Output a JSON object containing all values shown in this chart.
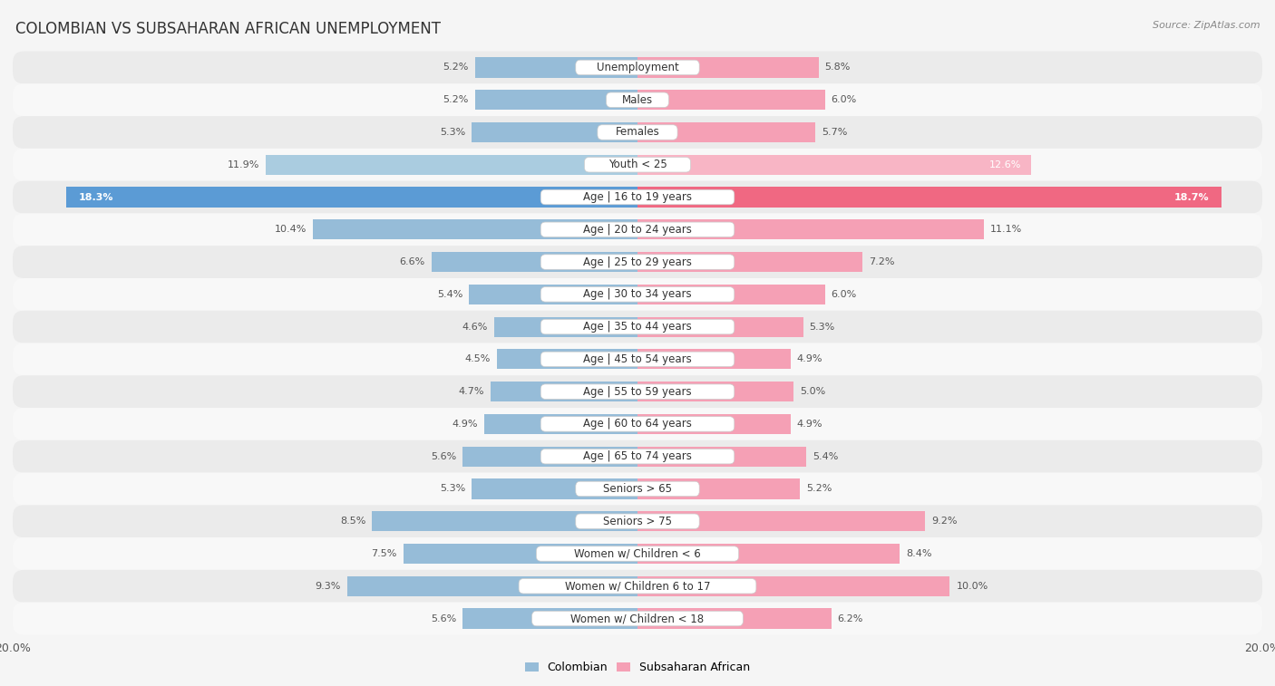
{
  "title": "COLOMBIAN VS SUBSAHARAN AFRICAN UNEMPLOYMENT",
  "source": "Source: ZipAtlas.com",
  "categories": [
    "Unemployment",
    "Males",
    "Females",
    "Youth < 25",
    "Age | 16 to 19 years",
    "Age | 20 to 24 years",
    "Age | 25 to 29 years",
    "Age | 30 to 34 years",
    "Age | 35 to 44 years",
    "Age | 45 to 54 years",
    "Age | 55 to 59 years",
    "Age | 60 to 64 years",
    "Age | 65 to 74 years",
    "Seniors > 65",
    "Seniors > 75",
    "Women w/ Children < 6",
    "Women w/ Children 6 to 17",
    "Women w/ Children < 18"
  ],
  "colombian": [
    5.2,
    5.2,
    5.3,
    11.9,
    18.3,
    10.4,
    6.6,
    5.4,
    4.6,
    4.5,
    4.7,
    4.9,
    5.6,
    5.3,
    8.5,
    7.5,
    9.3,
    5.6
  ],
  "subsaharan": [
    5.8,
    6.0,
    5.7,
    12.6,
    18.7,
    11.1,
    7.2,
    6.0,
    5.3,
    4.9,
    5.0,
    4.9,
    5.4,
    5.2,
    9.2,
    8.4,
    10.0,
    6.2
  ],
  "colombian_color": "#96bcd8",
  "subsaharan_color": "#f5a0b5",
  "colombian_highlight_color": "#5b9bd5",
  "subsaharan_highlight_color": "#f06882",
  "colombian_youth_color": "#aacce0",
  "subsaharan_youth_color": "#f8b5c5",
  "max_val": 20.0,
  "fig_bg": "#f5f5f5",
  "row_bg_odd": "#ebebeb",
  "row_bg_even": "#f8f8f8",
  "label_fontsize": 8.5,
  "value_fontsize": 8.0,
  "title_fontsize": 12,
  "source_fontsize": 8
}
